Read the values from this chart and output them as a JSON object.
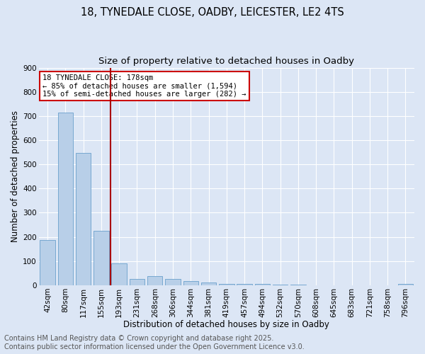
{
  "title1": "18, TYNEDALE CLOSE, OADBY, LEICESTER, LE2 4TS",
  "title2": "Size of property relative to detached houses in Oadby",
  "xlabel": "Distribution of detached houses by size in Oadby",
  "ylabel": "Number of detached properties",
  "categories": [
    "42sqm",
    "80sqm",
    "117sqm",
    "155sqm",
    "193sqm",
    "231sqm",
    "268sqm",
    "306sqm",
    "344sqm",
    "381sqm",
    "419sqm",
    "457sqm",
    "494sqm",
    "532sqm",
    "570sqm",
    "608sqm",
    "645sqm",
    "683sqm",
    "721sqm",
    "758sqm",
    "796sqm"
  ],
  "values": [
    188,
    714,
    547,
    225,
    91,
    27,
    38,
    25,
    17,
    12,
    5,
    5,
    5,
    2,
    2,
    1,
    1,
    1,
    0,
    0,
    5
  ],
  "bar_color": "#b8cfe8",
  "bar_edge_color": "#6aa0cc",
  "vline_color": "#aa0000",
  "annotation_text": "18 TYNEDALE CLOSE: 178sqm\n← 85% of detached houses are smaller (1,594)\n15% of semi-detached houses are larger (282) →",
  "annotation_box_facecolor": "#ffffff",
  "annotation_box_edge": "#cc0000",
  "ylim": [
    0,
    900
  ],
  "yticks": [
    0,
    100,
    200,
    300,
    400,
    500,
    600,
    700,
    800,
    900
  ],
  "footer_line1": "Contains HM Land Registry data © Crown copyright and database right 2025.",
  "footer_line2": "Contains public sector information licensed under the Open Government Licence v3.0.",
  "bg_color": "#dce6f5",
  "plot_bg_color": "#dce6f5",
  "grid_color": "#ffffff",
  "title_fontsize": 10.5,
  "subtitle_fontsize": 9.5,
  "axis_label_fontsize": 8.5,
  "tick_fontsize": 7.5,
  "footer_fontsize": 7,
  "annot_fontsize": 7.5
}
